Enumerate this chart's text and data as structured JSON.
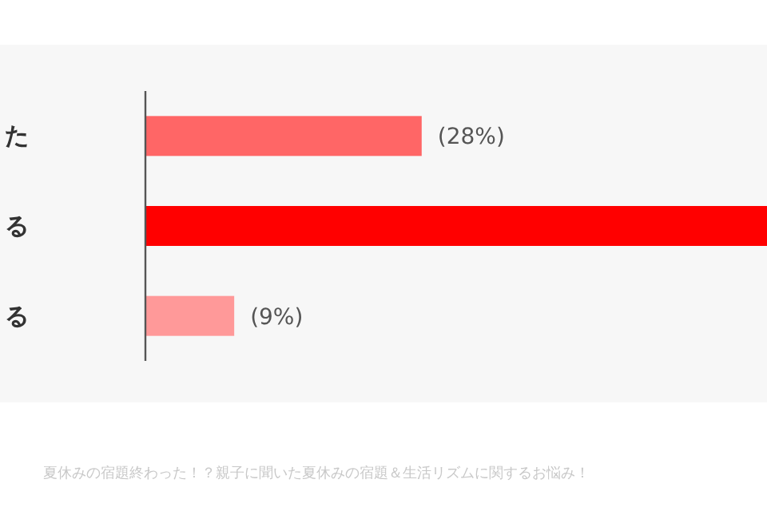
{
  "chart_data": {
    "type": "bar",
    "orientation": "horizontal",
    "categories": [
      "た",
      "る",
      "る"
    ],
    "values": [
      28,
      63,
      9
    ],
    "colors": [
      "#ff6666",
      "#ff0000",
      "#ff9999"
    ],
    "value_labels": [
      "(28%)",
      null,
      "(9%)"
    ],
    "annotations": [
      "夏休みの宿題終わった！？親子に聞いた夏休みの宿題＆生活リズムに関するお悩み！"
    ]
  }
}
